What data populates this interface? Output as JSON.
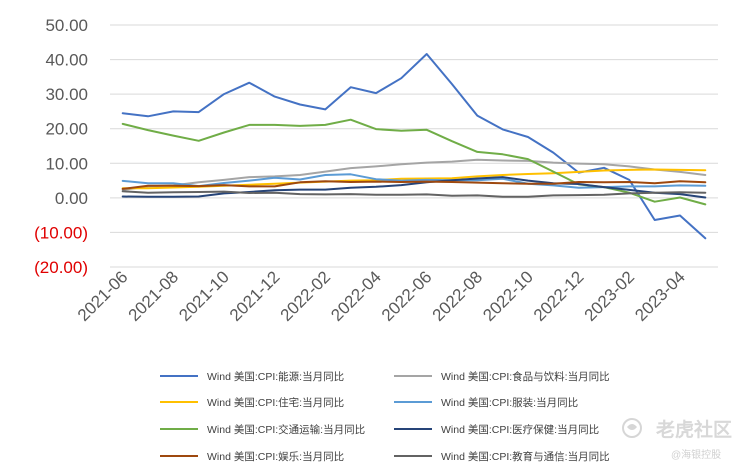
{
  "watermark": {
    "main": "老虎社区",
    "sub": "@海银控股"
  },
  "chart_data": {
    "type": "line",
    "title": "",
    "xlabel": "",
    "ylabel": "",
    "ylim": [
      -20,
      50
    ],
    "y_ticks": [
      50,
      40,
      30,
      20,
      10,
      0,
      -10,
      -20
    ],
    "y_tick_labels": [
      "50.00",
      "40.00",
      "30.00",
      "20.00",
      "10.00",
      "0.00",
      "(10.00)",
      "(20.00)"
    ],
    "negative_label_color": "#e00000",
    "grid": true,
    "legend_position": "bottom",
    "x": [
      "2021-06",
      "2021-07",
      "2021-08",
      "2021-09",
      "2021-10",
      "2021-11",
      "2021-12",
      "2022-01",
      "2022-02",
      "2022-03",
      "2022-04",
      "2022-05",
      "2022-06",
      "2022-07",
      "2022-08",
      "2022-09",
      "2022-10",
      "2022-11",
      "2022-12",
      "2023-01",
      "2023-02",
      "2023-03",
      "2023-04",
      "2023-05"
    ],
    "x_tick_labels": [
      "2021-06",
      "2021-08",
      "2021-10",
      "2021-12",
      "2022-02",
      "2022-04",
      "2022-06",
      "2022-08",
      "2022-10",
      "2022-12",
      "2023-02",
      "2023-04"
    ],
    "series": [
      {
        "name": "Wind 美国:CPI:能源:当月同比",
        "color": "#4472c4",
        "values": [
          24.5,
          23.6,
          25.0,
          24.8,
          30.0,
          33.3,
          29.3,
          27.0,
          25.6,
          32.0,
          30.3,
          34.6,
          41.6,
          32.9,
          23.8,
          19.8,
          17.6,
          13.1,
          7.3,
          8.7,
          5.2,
          -6.4,
          -5.1,
          -11.7
        ]
      },
      {
        "name": "Wind 美国:CPI:食品与饮料:当月同比",
        "color": "#a5a5a5",
        "values": [
          2.3,
          3.3,
          3.6,
          4.5,
          5.2,
          6.0,
          6.2,
          6.6,
          7.6,
          8.6,
          9.1,
          9.7,
          10.2,
          10.5,
          11.0,
          10.8,
          10.7,
          10.2,
          9.9,
          9.7,
          9.1,
          8.2,
          7.5,
          6.6
        ]
      },
      {
        "name": "Wind 美国:CPI:住宅:当月同比",
        "color": "#ffc000",
        "values": [
          2.8,
          2.8,
          3.0,
          3.2,
          3.5,
          3.8,
          4.1,
          4.4,
          4.7,
          5.0,
          5.1,
          5.5,
          5.6,
          5.7,
          6.2,
          6.6,
          6.9,
          7.1,
          7.5,
          7.9,
          8.1,
          8.2,
          8.1,
          8.0
        ]
      },
      {
        "name": "Wind 美国:CPI:服装:当月同比",
        "color": "#5b9bd5",
        "values": [
          4.9,
          4.2,
          4.2,
          3.4,
          4.3,
          5.0,
          5.8,
          5.3,
          6.6,
          6.8,
          5.4,
          5.0,
          5.2,
          5.1,
          5.1,
          5.5,
          4.1,
          3.6,
          2.9,
          3.1,
          3.3,
          3.3,
          3.6,
          3.5
        ]
      },
      {
        "name": "Wind 美国:CPI:交通运输:当月同比",
        "color": "#70ad47",
        "values": [
          21.4,
          19.6,
          18.0,
          16.5,
          18.9,
          21.1,
          21.1,
          20.8,
          21.1,
          22.6,
          19.9,
          19.4,
          19.7,
          16.4,
          13.3,
          12.6,
          11.2,
          7.6,
          3.9,
          3.1,
          1.5,
          -1.1,
          0.1,
          -1.9
        ]
      },
      {
        "name": "Wind 美国:CPI:医疗保健:当月同比",
        "color": "#264478",
        "values": [
          0.4,
          0.3,
          0.3,
          0.4,
          1.3,
          1.7,
          2.2,
          2.4,
          2.4,
          2.9,
          3.2,
          3.7,
          4.5,
          5.1,
          5.6,
          6.0,
          5.0,
          4.2,
          4.0,
          3.1,
          2.3,
          1.5,
          1.1,
          0.1
        ]
      },
      {
        "name": "Wind 美国:CPI:娱乐:当月同比",
        "color": "#9e480e",
        "values": [
          2.6,
          3.5,
          3.5,
          3.4,
          3.7,
          3.3,
          3.3,
          4.5,
          4.8,
          4.6,
          4.7,
          4.6,
          4.7,
          4.6,
          4.4,
          4.2,
          4.1,
          4.1,
          4.6,
          4.5,
          4.6,
          4.2,
          4.8,
          4.5
        ]
      },
      {
        "name": "Wind 美国:CPI:教育与通信:当月同比",
        "color": "#636363",
        "values": [
          1.9,
          1.5,
          1.6,
          1.7,
          1.8,
          1.4,
          1.5,
          1.1,
          1.0,
          1.1,
          0.9,
          0.9,
          1.0,
          0.6,
          0.7,
          0.3,
          0.3,
          0.7,
          0.8,
          0.9,
          1.3,
          1.5,
          1.6,
          1.5
        ]
      }
    ]
  }
}
